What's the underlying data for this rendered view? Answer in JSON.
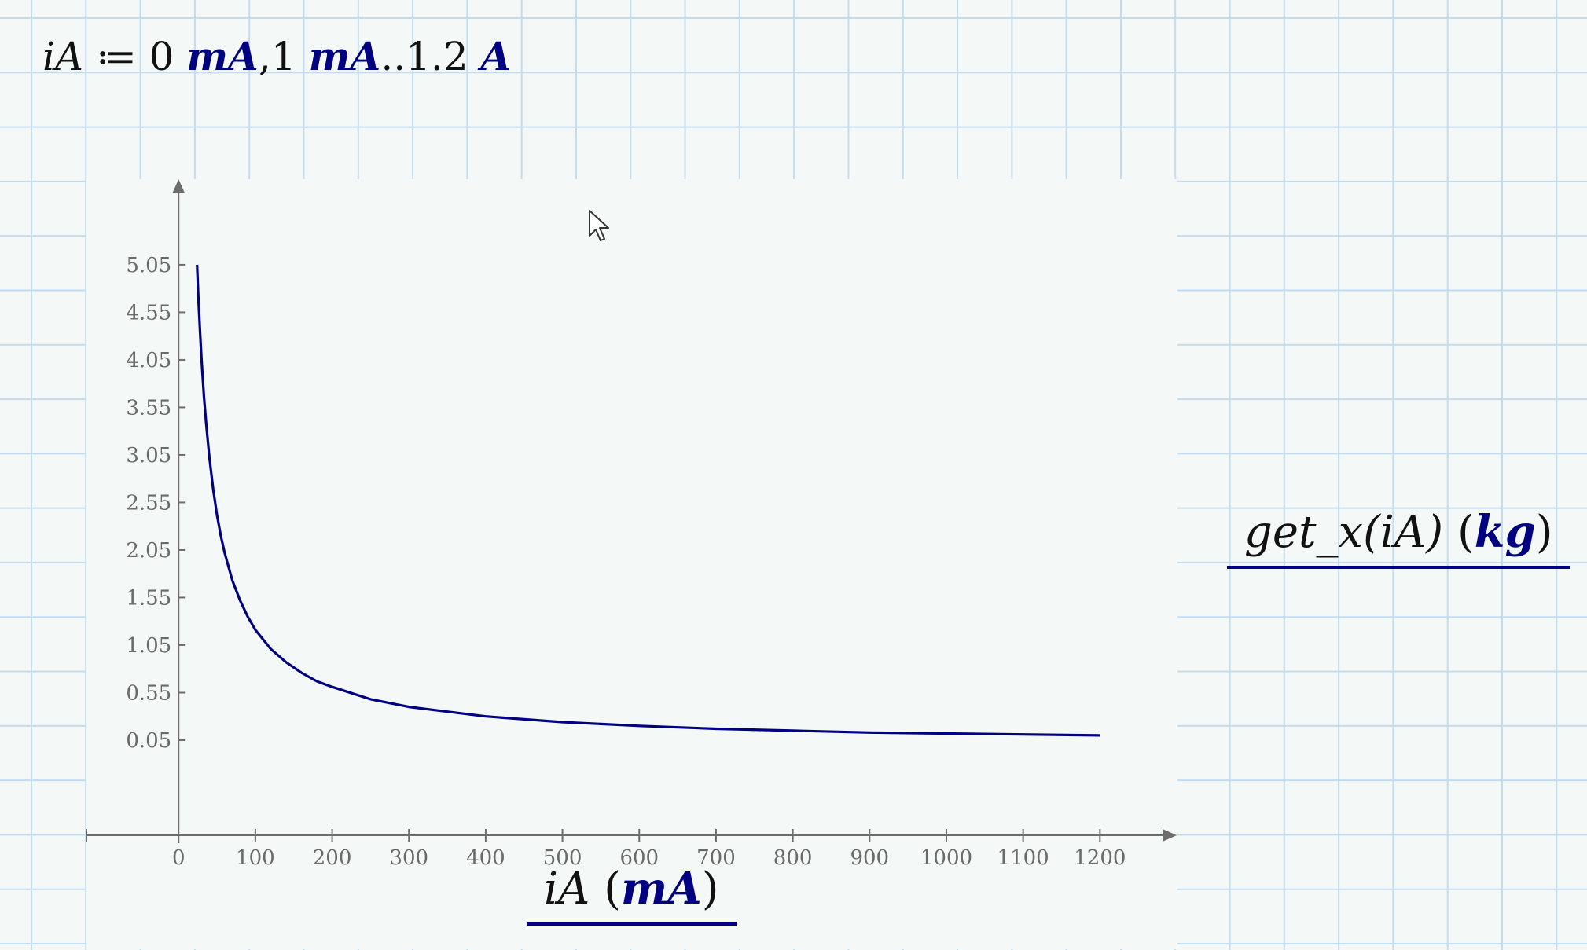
{
  "definition": {
    "variable": "iA",
    "assign_op": " ≔ ",
    "start_value": "0 ",
    "start_unit": "mA",
    "step_sep": ",",
    "step_value": "1 ",
    "step_unit": "mA",
    "range_op": "..",
    "end_value": "1.2 ",
    "end_unit": "A"
  },
  "x_axis_label": {
    "expression": "iA",
    "unit": "mA"
  },
  "y_axis_label": {
    "expression": "get_x(iA)",
    "unit": "kg"
  },
  "chart_data": {
    "type": "line",
    "title": "",
    "xlabel": "iA (mA)",
    "ylabel": "get_x(iA) (kg)",
    "xlim": [
      -120,
      1300
    ],
    "ylim": [
      -0.95,
      5.95
    ],
    "x_ticks": [
      0,
      100,
      200,
      300,
      400,
      500,
      600,
      700,
      800,
      900,
      1000,
      1100,
      1200
    ],
    "y_ticks": [
      0.05,
      0.55,
      1.05,
      1.55,
      2.05,
      2.55,
      3.05,
      3.55,
      4.05,
      4.55,
      5.05
    ],
    "x_tick_labels": [
      "0",
      "100",
      "200",
      "300",
      "400",
      "500",
      "600",
      "700",
      "800",
      "900",
      "1000",
      "1100",
      "1200"
    ],
    "y_tick_labels": [
      "0.05",
      "0.55",
      "1.05",
      "1.55",
      "2.05",
      "2.55",
      "3.05",
      "3.55",
      "4.05",
      "4.55",
      "5.05"
    ],
    "grid": false,
    "series": [
      {
        "color": "#000080",
        "x": [
          24,
          26,
          28,
          30,
          33,
          36,
          40,
          45,
          50,
          55,
          60,
          70,
          80,
          90,
          100,
          120,
          140,
          160,
          180,
          200,
          250,
          300,
          350,
          400,
          450,
          500,
          600,
          700,
          800,
          900,
          1000,
          1100,
          1200
        ],
        "y": [
          5.05,
          4.66,
          4.33,
          4.04,
          3.67,
          3.37,
          3.03,
          2.69,
          2.42,
          2.2,
          2.02,
          1.73,
          1.52,
          1.35,
          1.21,
          1.01,
          0.87,
          0.76,
          0.67,
          0.61,
          0.48,
          0.4,
          0.35,
          0.3,
          0.27,
          0.24,
          0.2,
          0.17,
          0.15,
          0.13,
          0.12,
          0.11,
          0.1
        ]
      }
    ]
  }
}
